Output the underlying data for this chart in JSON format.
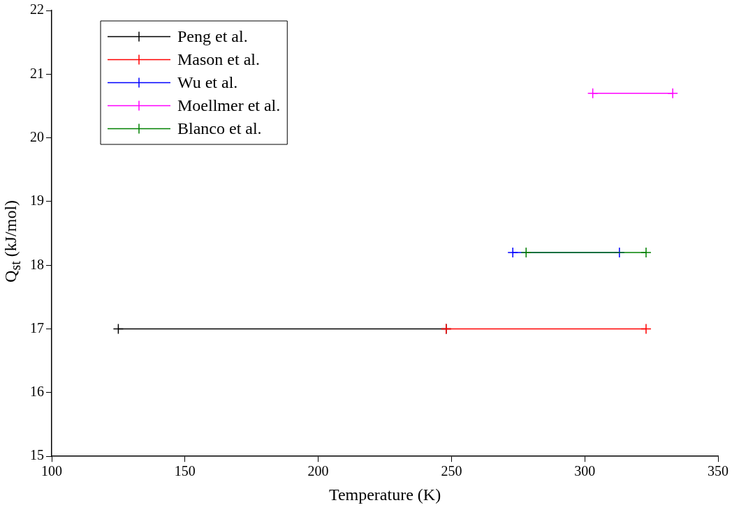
{
  "chart_data": {
    "type": "line",
    "xlabel": "Temperature (K)",
    "ylabel": "Q$_{st}$ (kJ/mol)",
    "xlim": [
      100,
      350
    ],
    "xticks": [
      100,
      150,
      200,
      250,
      300,
      350
    ],
    "ylim": [
      15,
      22
    ],
    "yticks": [
      15,
      16,
      17,
      18,
      19,
      20,
      21,
      22
    ],
    "grid": false,
    "legend": "top left",
    "marker": "cross",
    "line_style": "solid",
    "series": [
      {
        "name": "Peng et al.",
        "color": "#000000",
        "x": [
          125,
          248
        ],
        "values": [
          17,
          17
        ]
      },
      {
        "name": "Mason et al.",
        "color": "#ff0000",
        "x": [
          248,
          323
        ],
        "values": [
          17,
          17
        ]
      },
      {
        "name": "Wu et al.",
        "color": "#0000ff",
        "x": [
          273,
          313
        ],
        "values": [
          18.2,
          18.2
        ]
      },
      {
        "name": "Moellmer et al.",
        "color": "#ff00ff",
        "x": [
          303,
          333
        ],
        "values": [
          20.7,
          20.7
        ]
      },
      {
        "name": "Blanco et al.",
        "color": "#008000",
        "x": [
          278,
          323
        ],
        "values": [
          18.2,
          18.2
        ]
      }
    ]
  }
}
